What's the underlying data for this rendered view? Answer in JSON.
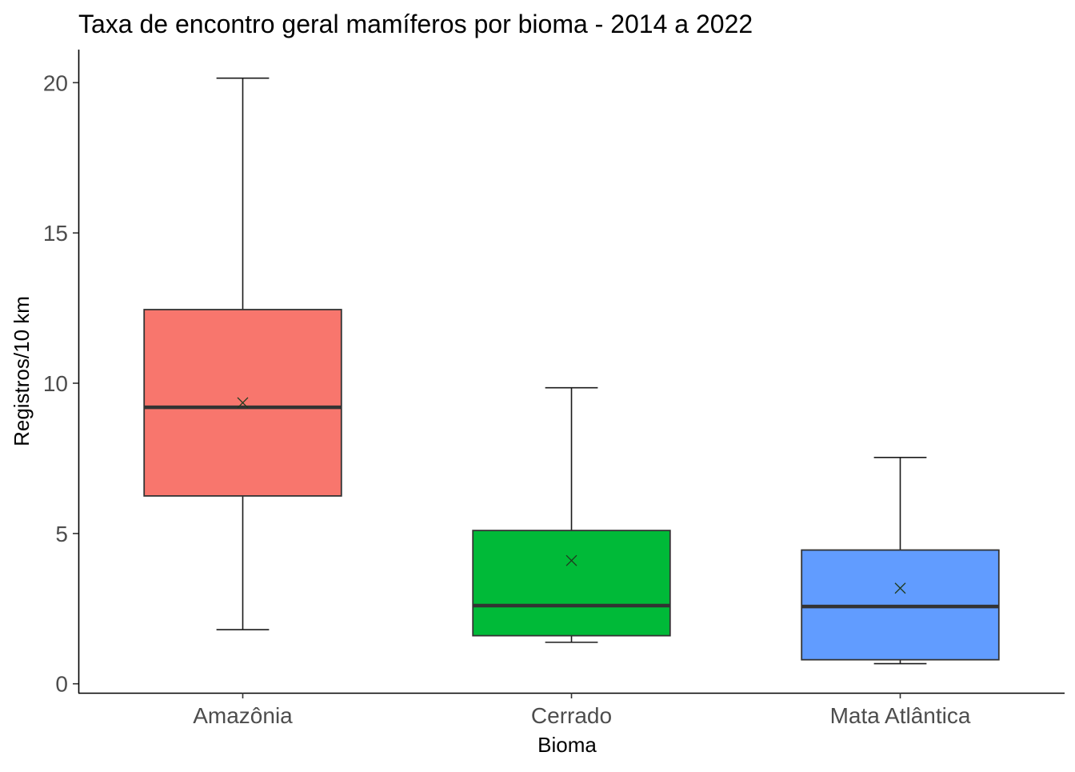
{
  "chart_data": {
    "type": "box",
    "title": "Taxa de encontro geral mamíferos por bioma - 2014 a 2022",
    "xlabel": "Bioma",
    "ylabel": "Registros/10 km",
    "ylim": [
      -0.3,
      21.1
    ],
    "y_ticks": [
      0,
      5,
      10,
      15,
      20
    ],
    "y_tick_labels": [
      "0",
      "5",
      "10",
      "15",
      "20"
    ],
    "grid": false,
    "legend": "none",
    "categories": [
      "Amazônia",
      "Cerrado",
      "Mata Atlântica"
    ],
    "series": [
      {
        "category": "Amazônia",
        "min": 1.8,
        "q1": 6.25,
        "median": 9.2,
        "q3": 12.45,
        "max": 20.15,
        "mean": 9.35,
        "color": "#F8766D"
      },
      {
        "category": "Cerrado",
        "min": 1.38,
        "q1": 1.6,
        "median": 2.6,
        "q3": 5.1,
        "max": 9.85,
        "mean": 4.1,
        "color": "#00BA38"
      },
      {
        "category": "Mata Atlântica",
        "min": 0.67,
        "q1": 0.8,
        "median": 2.57,
        "q3": 4.45,
        "max": 7.53,
        "mean": 3.18,
        "color": "#619CFF"
      }
    ]
  }
}
